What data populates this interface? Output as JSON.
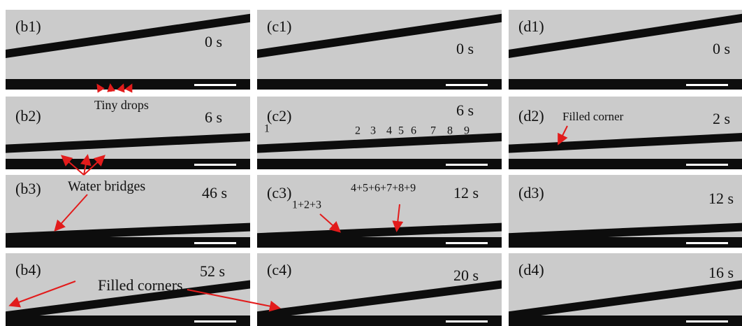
{
  "panels": [
    {
      "label": "(b1)",
      "time": "0 s"
    },
    {
      "label": "(b2)",
      "time": "6 s"
    },
    {
      "label": "(b3)",
      "time": "46 s"
    },
    {
      "label": "(b4)",
      "time": "52 s"
    },
    {
      "label": "(c1)",
      "time": "0 s"
    },
    {
      "label": "(c2)",
      "time": "6 s"
    },
    {
      "label": "(c3)",
      "time": "12 s"
    },
    {
      "label": "(c4)",
      "time": "20 s"
    },
    {
      "label": "(d1)",
      "time": "0 s"
    },
    {
      "label": "(d2)",
      "time": "2 s"
    },
    {
      "label": "(d3)",
      "time": "12 s"
    },
    {
      "label": "(d4)",
      "time": "16 s"
    }
  ],
  "annotations": [
    "Tiny drops",
    "Water bridges",
    "Filled corners",
    "1",
    "2",
    "3",
    "4",
    "5",
    "6",
    "7",
    "8",
    "9",
    "1+2+3",
    "4+5+6+7+8+9",
    "Filled corner"
  ]
}
